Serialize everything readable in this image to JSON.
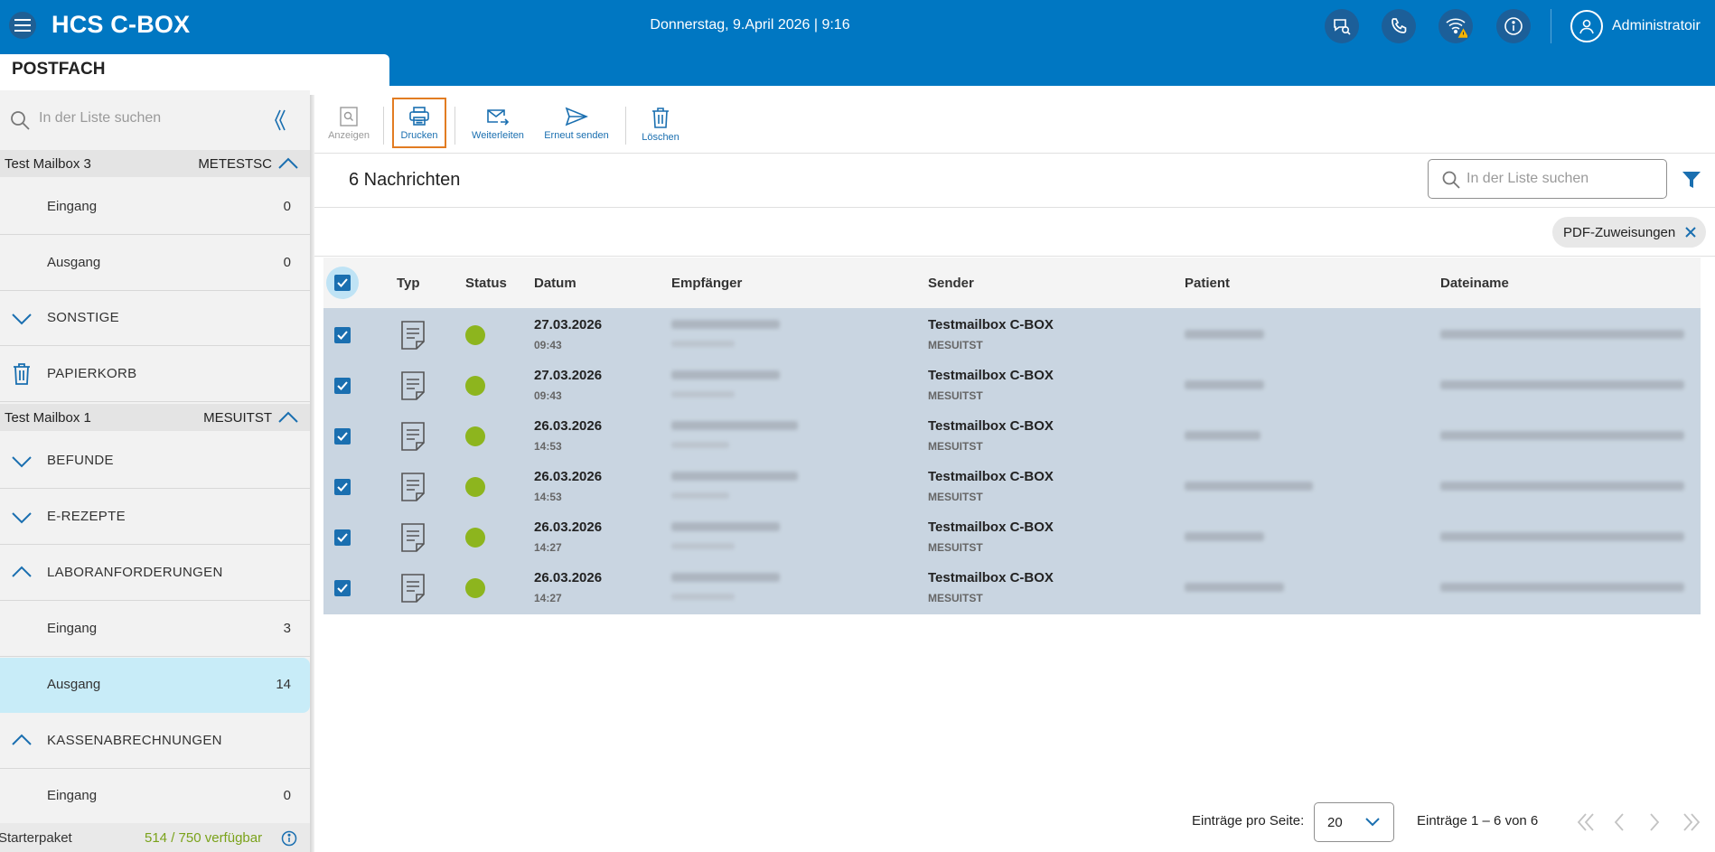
{
  "header": {
    "app_title": "HCS C-BOX",
    "datetime": "Donnerstag, 9.April 2026 | 9:16",
    "user": "Administratoir",
    "icons": [
      "menu-icon",
      "chat-search-icon",
      "phone-icon",
      "wifi-warning-icon",
      "info-icon",
      "user-icon"
    ]
  },
  "sidebar": {
    "title": "POSTFACH",
    "search_placeholder": "In der Liste suchen",
    "mailbox1": {
      "name": "Test Mailbox 3",
      "code": "METESTSC"
    },
    "mailbox1_items": [
      {
        "label": "Eingang",
        "count": "0"
      },
      {
        "label": "Ausgang",
        "count": "0"
      },
      {
        "label": "SONSTIGE"
      },
      {
        "label": "PAPIERKORB"
      }
    ],
    "mailbox2": {
      "name": "Test Mailbox 1",
      "code": "MESUITST"
    },
    "mailbox2_items": [
      {
        "label": "BEFUNDE"
      },
      {
        "label": "E-REZEPTE"
      },
      {
        "label": "LABORANFORDERUNGEN"
      },
      {
        "label": "Eingang",
        "count": "3"
      },
      {
        "label": "Ausgang",
        "count": "14"
      },
      {
        "label": "KASSENABRECHNUNGEN"
      },
      {
        "label": "Eingang",
        "count": "0"
      }
    ],
    "footer": {
      "plan": "Starterpaket",
      "available": "514 / 750 verfügbar"
    }
  },
  "toolbar": {
    "view": "Anzeigen",
    "print": "Drucken",
    "forward": "Weiterleiten",
    "resend": "Erneut senden",
    "delete": "Löschen"
  },
  "list": {
    "count_label": "6 Nachrichten",
    "search_placeholder": "In der Liste suchen",
    "filter_chip": "PDF-Zuweisungen",
    "columns": [
      "Typ",
      "Status",
      "Datum",
      "Empfänger",
      "Sender",
      "Patient",
      "Dateiname"
    ],
    "rows": [
      {
        "date": "27.03.2026",
        "time": "09:43",
        "sender": "Testmailbox C-BOX",
        "sender_code": "MESUITST",
        "status_color": "#8db51e"
      },
      {
        "date": "27.03.2026",
        "time": "09:43",
        "sender": "Testmailbox C-BOX",
        "sender_code": "MESUITST",
        "status_color": "#8db51e"
      },
      {
        "date": "26.03.2026",
        "time": "14:53",
        "sender": "Testmailbox C-BOX",
        "sender_code": "MESUITST",
        "status_color": "#8db51e"
      },
      {
        "date": "26.03.2026",
        "time": "14:53",
        "sender": "Testmailbox C-BOX",
        "sender_code": "MESUITST",
        "status_color": "#8db51e"
      },
      {
        "date": "26.03.2026",
        "time": "14:27",
        "sender": "Testmailbox C-BOX",
        "sender_code": "MESUITST",
        "status_color": "#8db51e"
      },
      {
        "date": "26.03.2026",
        "time": "14:27",
        "sender": "Testmailbox C-BOX",
        "sender_code": "MESUITST",
        "status_color": "#8db51e"
      }
    ]
  },
  "pagination": {
    "per_page_label": "Einträge pro Seite:",
    "per_page_value": "20",
    "range": "Einträge 1 – 6 von 6"
  },
  "colors": {
    "brand": "#0077c2",
    "accent": "#1a6fb0",
    "selected_row": "#c9d5e1",
    "active_item": "#c8ecf8",
    "status_ok": "#8db51e",
    "highlight_border": "#e27c22"
  }
}
